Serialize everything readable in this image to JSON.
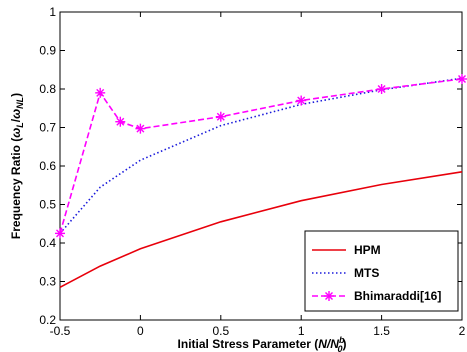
{
  "chart_data": {
    "type": "line",
    "xlabel": {
      "main": "Initial Stress Parameter (",
      "italic": "N/N",
      "sub": "0",
      "sup": "b",
      "close": ")"
    },
    "ylabel": {
      "main": "Frequency Ratio (",
      "w1": "ω",
      "s1": "L",
      "slash": "/",
      "w2": "ω",
      "s2": "NL",
      "close": ")"
    },
    "xlim": [
      -0.5,
      2
    ],
    "ylim": [
      0.2,
      1
    ],
    "xticks": [
      -0.5,
      0,
      0.5,
      1,
      1.5,
      2
    ],
    "xtick_labels": [
      "-0.5",
      "0",
      "0.5",
      "1",
      "1.5",
      "2"
    ],
    "yticks": [
      0.2,
      0.3,
      0.4,
      0.5,
      0.6,
      0.7,
      0.8,
      0.9,
      1
    ],
    "ytick_labels": [
      "0.2",
      "0.3",
      "0.4",
      "0.5",
      "0.6",
      "0.7",
      "0.8",
      "0.9",
      "1"
    ],
    "grid": false,
    "legend_position": "lower-right",
    "series": [
      {
        "name": "HPM",
        "color": "#e8000b",
        "style": "solid",
        "marker": "none",
        "x": [
          -0.5,
          -0.25,
          0,
          0.5,
          1,
          1.5,
          2
        ],
        "y": [
          0.285,
          0.34,
          0.385,
          0.455,
          0.51,
          0.552,
          0.585
        ]
      },
      {
        "name": "MTS",
        "color": "#1a1adb",
        "style": "dotted",
        "marker": "none",
        "x": [
          -0.5,
          -0.25,
          0,
          0.5,
          1,
          1.5,
          2
        ],
        "y": [
          0.425,
          0.545,
          0.615,
          0.705,
          0.76,
          0.798,
          0.828
        ]
      },
      {
        "name": "Bhimaraddi[16]",
        "color": "#ff00ff",
        "style": "dashed",
        "marker": "star",
        "x": [
          -0.5,
          -0.25,
          -0.125,
          0,
          0.5,
          1,
          1.5,
          2
        ],
        "y": [
          0.425,
          0.79,
          0.715,
          0.697,
          0.728,
          0.77,
          0.8,
          0.826
        ]
      }
    ]
  }
}
